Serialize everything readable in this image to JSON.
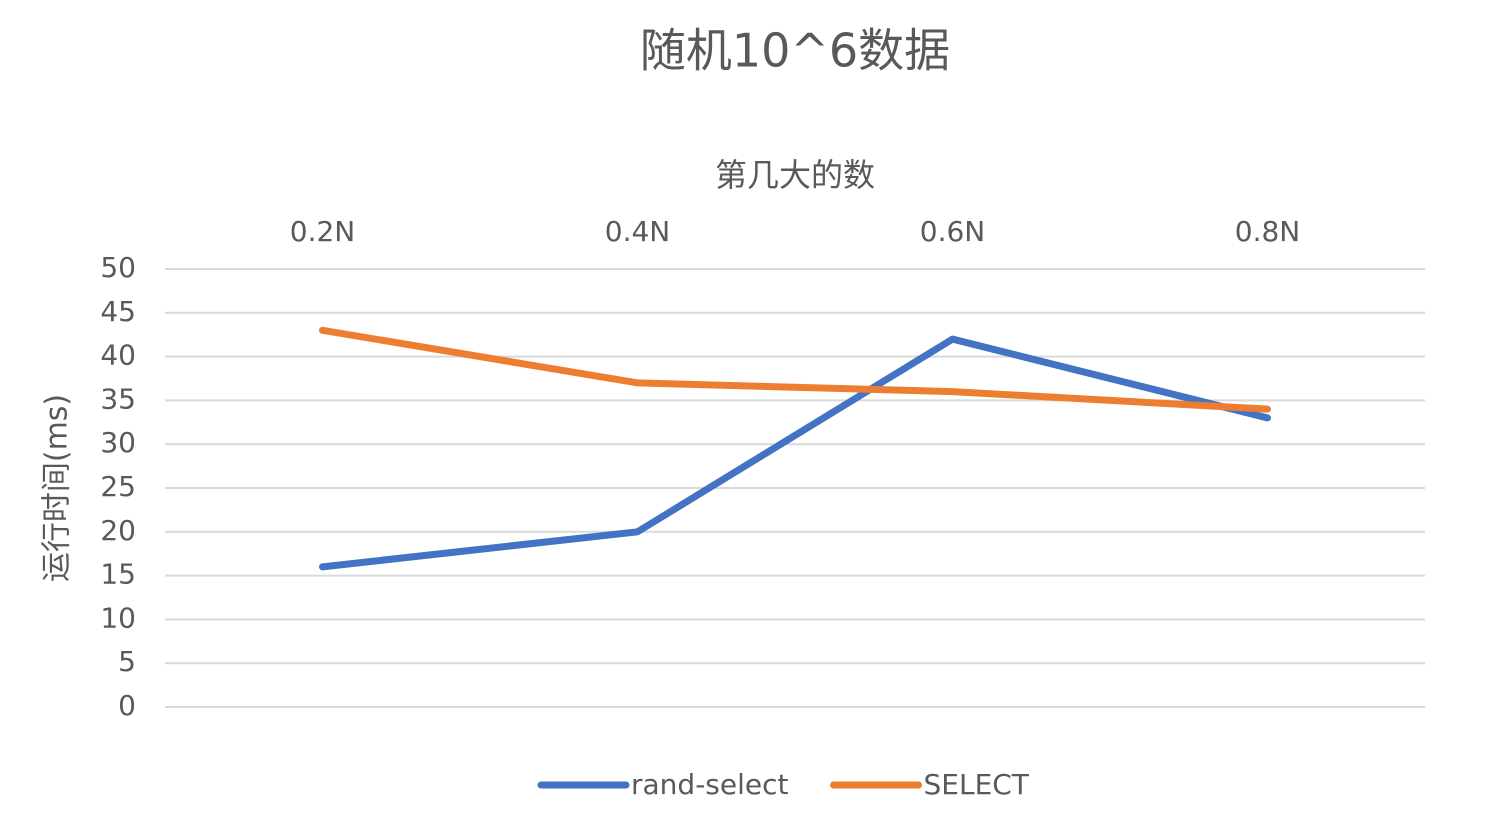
{
  "chart_data": {
    "type": "line",
    "title": "随机10^6数据",
    "x_label": "第几大的数",
    "y_label": "运行时间(ms)",
    "categories": [
      "0.2N",
      "0.4N",
      "0.6N",
      "0.8N"
    ],
    "series": [
      {
        "name": "rand-select",
        "color": "#4472c4",
        "values": [
          16,
          20,
          42,
          33
        ]
      },
      {
        "name": "SELECT",
        "color": "#ed7d31",
        "values": [
          43,
          37,
          36,
          34
        ]
      }
    ],
    "ylim": [
      0,
      50
    ],
    "yticks": [
      0,
      5,
      10,
      15,
      20,
      25,
      30,
      35,
      40,
      45,
      50
    ],
    "grid": true,
    "legend": "bottom"
  }
}
